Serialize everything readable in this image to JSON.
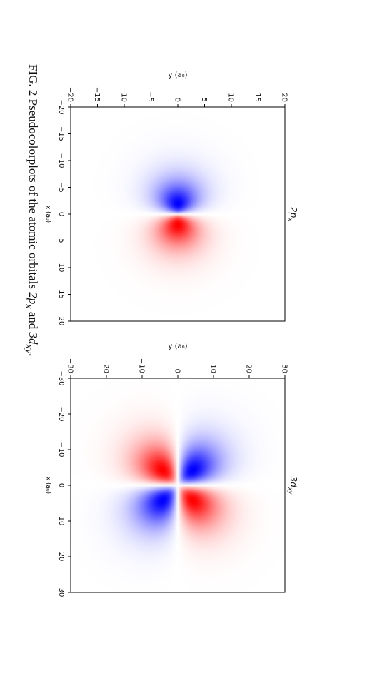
{
  "caption": {
    "prefix": "FIG. 2 Pseudocolorplots of the atomic orbitals ",
    "orbital_a": "2p",
    "orbital_a_sub": "x",
    "connector": " and ",
    "orbital_b": "3d",
    "orbital_b_sub": "xy",
    "suffix": "."
  },
  "chart_data": [
    {
      "type": "heatmap",
      "title": "2p",
      "title_sub": "x",
      "xlabel": "x (a₀)",
      "ylabel": "y (a₀)",
      "xlim": [
        -20,
        20
      ],
      "ylim": [
        -20,
        20
      ],
      "xticks": [
        -20,
        -15,
        -10,
        -5,
        0,
        5,
        10,
        15,
        20
      ],
      "yticks": [
        -20,
        -15,
        -10,
        -5,
        0,
        5,
        10,
        15,
        20
      ],
      "xtick_labels": [
        "−20",
        "−15",
        "−10",
        "−5",
        "0",
        "5",
        "10",
        "15",
        "20"
      ],
      "ytick_labels": [
        "−20",
        "−15",
        "−10",
        "−5",
        "0",
        "5",
        "10",
        "15",
        "20"
      ],
      "function": "x * exp(-r/2)",
      "colormap": "bwr",
      "negative_color": "#0000ff",
      "positive_color": "#ff0000"
    },
    {
      "type": "heatmap",
      "title": "3d",
      "title_sub": "xy",
      "xlabel": "x (a₀)",
      "ylabel": "y (a₀)",
      "xlim": [
        -30,
        30
      ],
      "ylim": [
        -30,
        30
      ],
      "xticks": [
        -30,
        -20,
        -10,
        0,
        10,
        20,
        30
      ],
      "yticks": [
        -30,
        -20,
        -10,
        0,
        10,
        20,
        30
      ],
      "xtick_labels": [
        "−30",
        "−20",
        "−10",
        "0",
        "10",
        "20",
        "30"
      ],
      "ytick_labels": [
        "−30",
        "−20",
        "−10",
        "0",
        "10",
        "20",
        "30"
      ],
      "function": "x * y * exp(-r/3)",
      "colormap": "bwr",
      "negative_color": "#0000ff",
      "positive_color": "#ff0000"
    }
  ]
}
